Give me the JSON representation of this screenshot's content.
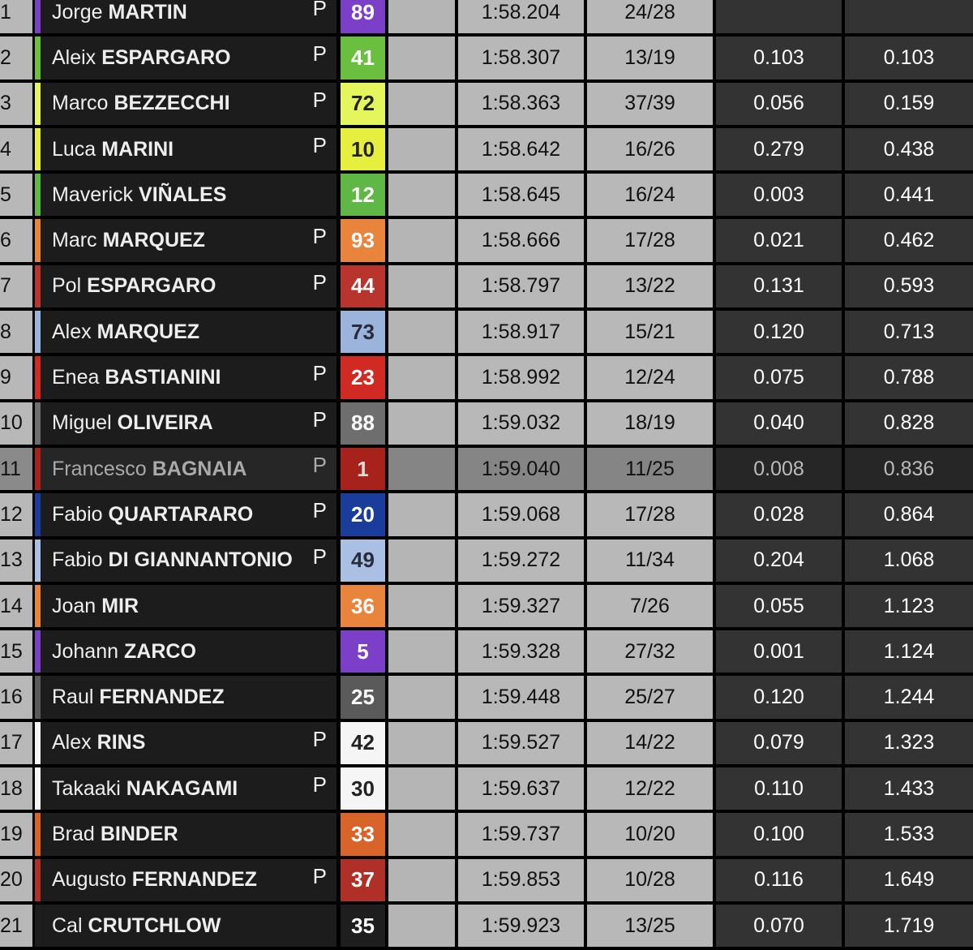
{
  "rows": [
    {
      "pos": "1",
      "first": "Jorge",
      "last": "MARTIN",
      "p": "P",
      "num": "89",
      "color": "#7b3fc8",
      "numText": "#ffffff",
      "time": "1:58.204",
      "laps": "24/28",
      "gap": "",
      "gapFirst": ""
    },
    {
      "pos": "2",
      "first": "Aleix",
      "last": "ESPARGARO",
      "p": "P",
      "num": "41",
      "color": "#6bbf3f",
      "numText": "#ffffff",
      "time": "1:58.307",
      "laps": "13/19",
      "gap": "0.103",
      "gapFirst": "0.103"
    },
    {
      "pos": "3",
      "first": "Marco",
      "last": "BEZZECCHI",
      "p": "P",
      "num": "72",
      "color": "#e4f65c",
      "numText": "#222222",
      "time": "1:58.363",
      "laps": "37/39",
      "gap": "0.056",
      "gapFirst": "0.159"
    },
    {
      "pos": "4",
      "first": "Luca",
      "last": "MARINI",
      "p": "P",
      "num": "10",
      "color": "#e6ef3e",
      "numText": "#222222",
      "time": "1:58.642",
      "laps": "16/26",
      "gap": "0.279",
      "gapFirst": "0.438"
    },
    {
      "pos": "5",
      "first": "Maverick",
      "last": "VIÑALES",
      "p": "",
      "num": "12",
      "color": "#5fb845",
      "numText": "#ffffff",
      "time": "1:58.645",
      "laps": "16/24",
      "gap": "0.003",
      "gapFirst": "0.441"
    },
    {
      "pos": "6",
      "first": "Marc",
      "last": "MARQUEZ",
      "p": "P",
      "num": "93",
      "color": "#e8843c",
      "numText": "#ffffff",
      "time": "1:58.666",
      "laps": "17/28",
      "gap": "0.021",
      "gapFirst": "0.462"
    },
    {
      "pos": "7",
      "first": "Pol",
      "last": "ESPARGARO",
      "p": "P",
      "num": "44",
      "color": "#b8342c",
      "numText": "#ffffff",
      "time": "1:58.797",
      "laps": "13/22",
      "gap": "0.131",
      "gapFirst": "0.593"
    },
    {
      "pos": "8",
      "first": "Alex",
      "last": "MARQUEZ",
      "p": "",
      "num": "73",
      "color": "#9ab4dc",
      "numText": "#2a2a3a",
      "time": "1:58.917",
      "laps": "15/21",
      "gap": "0.120",
      "gapFirst": "0.713"
    },
    {
      "pos": "9",
      "first": "Enea",
      "last": "BASTIANINI",
      "p": "P",
      "num": "23",
      "color": "#d12a22",
      "numText": "#ffffff",
      "time": "1:58.992",
      "laps": "12/24",
      "gap": "0.075",
      "gapFirst": "0.788"
    },
    {
      "pos": "10",
      "first": "Miguel",
      "last": "OLIVEIRA",
      "p": "P",
      "num": "88",
      "color": "#6e6e6e",
      "numText": "#ffffff",
      "time": "1:59.032",
      "laps": "18/19",
      "gap": "0.040",
      "gapFirst": "0.828"
    },
    {
      "pos": "11",
      "first": "Francesco",
      "last": "BAGNAIA",
      "p": "P",
      "num": "1",
      "color": "#a8221c",
      "numText": "#dddddd",
      "time": "1:59.040",
      "laps": "11/25",
      "gap": "0.008",
      "gapFirst": "0.836",
      "highlight": true
    },
    {
      "pos": "12",
      "first": "Fabio",
      "last": "QUARTARARO",
      "p": "P",
      "num": "20",
      "color": "#1a3c9a",
      "numText": "#ffffff",
      "time": "1:59.068",
      "laps": "17/28",
      "gap": "0.028",
      "gapFirst": "0.864"
    },
    {
      "pos": "13",
      "first": "Fabio",
      "last": "DI GIANNANTONIO",
      "p": "P",
      "num": "49",
      "color": "#a9c0e4",
      "numText": "#2a2a3a",
      "time": "1:59.272",
      "laps": "11/34",
      "gap": "0.204",
      "gapFirst": "1.068"
    },
    {
      "pos": "14",
      "first": "Joan",
      "last": "MIR",
      "p": "",
      "num": "36",
      "color": "#e8843c",
      "numText": "#ffffff",
      "time": "1:59.327",
      "laps": "7/26",
      "gap": "0.055",
      "gapFirst": "1.123"
    },
    {
      "pos": "15",
      "first": "Johann",
      "last": "ZARCO",
      "p": "",
      "num": "5",
      "color": "#7b3fc8",
      "numText": "#ffffff",
      "time": "1:59.328",
      "laps": "27/32",
      "gap": "0.001",
      "gapFirst": "1.124"
    },
    {
      "pos": "16",
      "first": "Raul",
      "last": "FERNANDEZ",
      "p": "",
      "num": "25",
      "color": "#5a5a5a",
      "numText": "#ffffff",
      "time": "1:59.448",
      "laps": "25/27",
      "gap": "0.120",
      "gapFirst": "1.244"
    },
    {
      "pos": "17",
      "first": "Alex",
      "last": "RINS",
      "p": "P",
      "num": "42",
      "color": "#f5f5f5",
      "numText": "#222222",
      "time": "1:59.527",
      "laps": "14/22",
      "gap": "0.079",
      "gapFirst": "1.323"
    },
    {
      "pos": "18",
      "first": "Takaaki",
      "last": "NAKAGAMI",
      "p": "P",
      "num": "30",
      "color": "#f5f5f5",
      "numText": "#222222",
      "time": "1:59.637",
      "laps": "12/22",
      "gap": "0.110",
      "gapFirst": "1.433"
    },
    {
      "pos": "19",
      "first": "Brad",
      "last": "BINDER",
      "p": "",
      "num": "33",
      "color": "#d9642a",
      "numText": "#ffffff",
      "time": "1:59.737",
      "laps": "10/20",
      "gap": "0.100",
      "gapFirst": "1.533"
    },
    {
      "pos": "20",
      "first": "Augusto",
      "last": "FERNANDEZ",
      "p": "P",
      "num": "37",
      "color": "#b03028",
      "numText": "#ffffff",
      "time": "1:59.853",
      "laps": "10/28",
      "gap": "0.116",
      "gapFirst": "1.649"
    },
    {
      "pos": "21",
      "first": "Cal",
      "last": "CRUTCHLOW",
      "p": "",
      "num": "35",
      "color": "#1e1e1e",
      "numText": "#ffffff",
      "time": "1:59.923",
      "laps": "13/25",
      "gap": "0.070",
      "gapFirst": "1.719"
    }
  ]
}
